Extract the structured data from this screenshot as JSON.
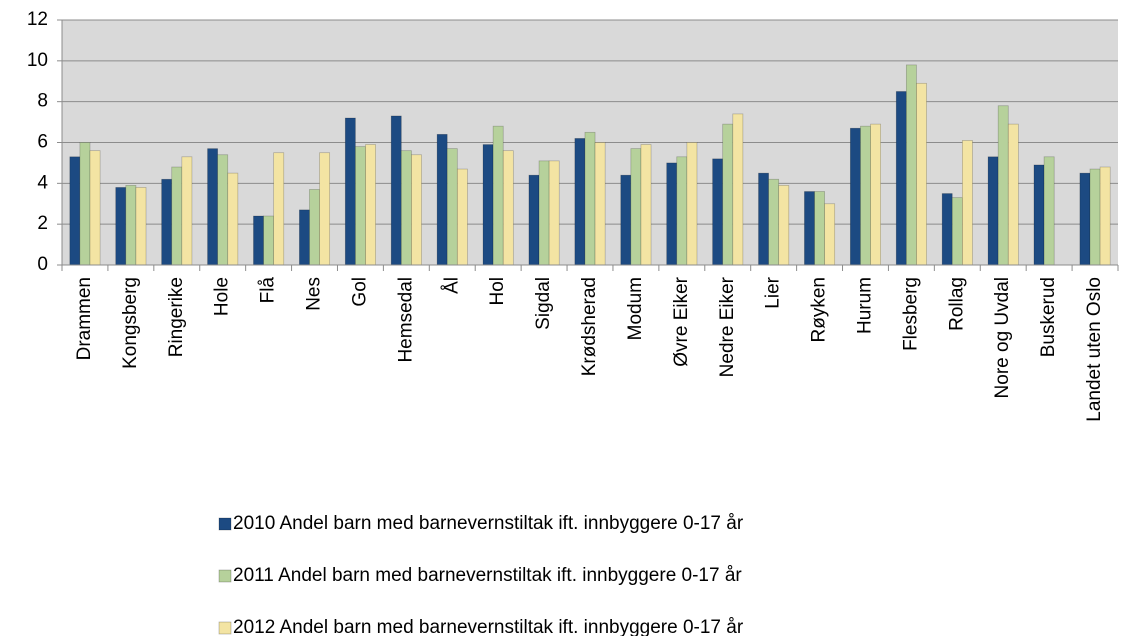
{
  "chart_data": {
    "type": "bar",
    "categories": [
      "Drammen",
      "Kongsberg",
      "Ringerike",
      "Hole",
      "Flå",
      "Nes",
      "Gol",
      "Hemsedal",
      "Ål",
      "Hol",
      "Sigdal",
      "Krødsherad",
      "Modum",
      "Øvre Eiker",
      "Nedre Eiker",
      "Lier",
      "Røyken",
      "Hurum",
      "Flesberg",
      "Rollag",
      "Nore og Uvdal",
      "Buskerud",
      "Landet uten Oslo"
    ],
    "series": [
      {
        "name": "2010 Andel barn med barnevernstiltak ift. innbyggere 0-17 år",
        "color": "#1c4a82",
        "values": [
          5.3,
          3.8,
          4.2,
          5.7,
          2.4,
          2.7,
          7.2,
          7.3,
          6.4,
          5.9,
          4.4,
          6.2,
          4.4,
          5.0,
          5.2,
          4.5,
          3.6,
          6.7,
          8.5,
          3.5,
          5.3,
          4.9,
          4.5
        ]
      },
      {
        "name": "2011 Andel barn med barnevernstiltak ift. innbyggere 0-17 år",
        "color": "#b6d19b",
        "values": [
          6.0,
          3.9,
          4.8,
          5.4,
          2.4,
          3.7,
          5.8,
          5.6,
          5.7,
          6.8,
          5.1,
          6.5,
          5.7,
          5.3,
          6.9,
          4.2,
          3.6,
          6.8,
          9.8,
          3.3,
          7.8,
          5.3,
          4.7
        ]
      },
      {
        "name": "2012 Andel barn med barnevernstiltak ift. innbyggere 0-17 år",
        "color": "#f3e4a3",
        "values": [
          5.6,
          3.8,
          5.3,
          4.5,
          5.5,
          5.5,
          5.9,
          5.4,
          4.7,
          5.6,
          5.1,
          6.0,
          5.9,
          6.0,
          7.4,
          3.9,
          3.0,
          6.9,
          8.9,
          6.1,
          6.9,
          null,
          4.8
        ]
      }
    ],
    "ylim": [
      0,
      12
    ],
    "yticks": [
      0,
      2,
      4,
      6,
      8,
      10,
      12
    ],
    "grid": true,
    "legend": "bottom"
  }
}
